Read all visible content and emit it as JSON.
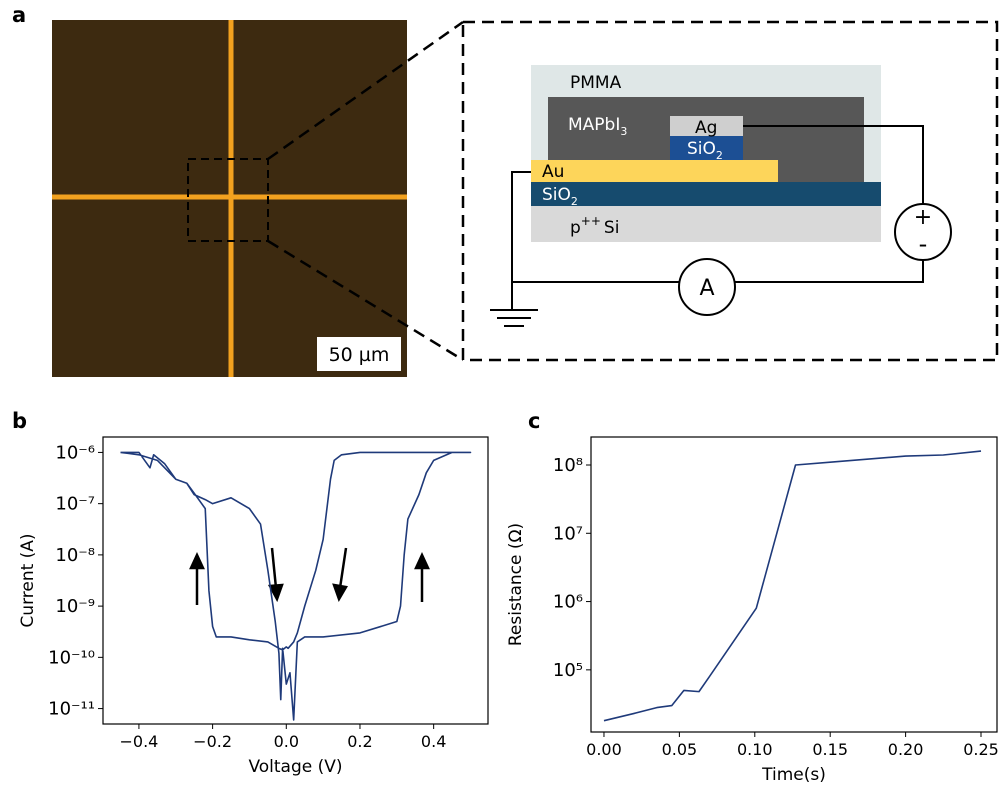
{
  "panel_a": {
    "panel_label": "a",
    "scale_bar": "50 µm",
    "schematic": {
      "pmma": "PMMA",
      "mapbi": {
        "text": "MAPbI",
        "sub": "3"
      },
      "ag": "Ag",
      "sio2_small": {
        "text": "SiO",
        "sub": "2"
      },
      "au": "Au",
      "sio2_layer": {
        "text": "SiO",
        "sub": "2"
      },
      "substrate": {
        "text": "p",
        "sup": "++",
        "rest": "Si"
      },
      "plus": "+",
      "minus": "-",
      "ammeter": "A"
    }
  },
  "chart_data": [
    {
      "type": "line",
      "panel_label": "b",
      "x_label": "Voltage (V)",
      "y_label": "Current (A)",
      "color": "#1f3a7a",
      "log_y": true,
      "xlim": [
        -0.4975,
        0.5475
      ],
      "ylim": [
        5e-12,
        2e-06
      ],
      "xticks": [
        {
          "value": -0.4,
          "label": "−0.4"
        },
        {
          "value": -0.2,
          "label": "−0.2"
        },
        {
          "value": 0,
          "label": "0.0"
        },
        0.2,
        0.4
      ],
      "yticks": [
        {
          "value": 1e-06,
          "label": "10⁻⁶"
        },
        {
          "value": 1e-07,
          "label": "10⁻⁷"
        },
        {
          "value": 1e-08,
          "label": "10⁻⁸"
        },
        {
          "value": 1e-09,
          "label": "10⁻⁹"
        },
        {
          "value": 1e-10,
          "label": "10⁻¹⁰"
        },
        {
          "value": 1e-11,
          "label": "10⁻¹¹"
        }
      ],
      "x": [
        -0.45,
        -0.4,
        -0.37,
        -0.36,
        -0.33,
        -0.3,
        -0.27,
        -0.25,
        -0.22,
        -0.2,
        -0.15,
        -0.1,
        -0.07,
        -0.05,
        -0.03,
        -0.02,
        -0.015,
        -0.01,
        0.0,
        0.01,
        0.02,
        0.03,
        0.05,
        0.1,
        0.2,
        0.3,
        0.31,
        0.32,
        0.33,
        0.36,
        0.38,
        0.4,
        0.45,
        0.5,
        0.5,
        0.4,
        0.2,
        0.15,
        0.13,
        0.12,
        0.1,
        0.08,
        0.05,
        0.03,
        0.02,
        0.005,
        0.0,
        -0.01,
        -0.02,
        -0.05,
        -0.1,
        -0.15,
        -0.19,
        -0.2,
        -0.21,
        -0.22,
        -0.25,
        -0.27,
        -0.3,
        -0.35,
        -0.4,
        -0.45
      ],
      "values": [
        1e-06,
        1e-06,
        5e-07,
        9e-07,
        6e-07,
        3e-07,
        2.5e-07,
        1.5e-07,
        1.2e-07,
        1e-07,
        1.3e-07,
        8e-08,
        4e-08,
        5e-09,
        5e-10,
        1.2e-10,
        1.5e-11,
        1.5e-10,
        3e-11,
        5e-11,
        6e-12,
        2e-10,
        2.5e-10,
        2.5e-10,
        3e-10,
        5e-10,
        1e-09,
        1e-08,
        5e-08,
        1.5e-07,
        4e-07,
        7e-07,
        1e-06,
        1e-06,
        1e-06,
        1e-06,
        1e-06,
        9e-07,
        7e-07,
        3e-07,
        2e-08,
        5e-09,
        1e-09,
        3e-10,
        2e-10,
        1.5e-10,
        1.6e-10,
        1.4e-10,
        1.5e-10,
        2e-10,
        2.2e-10,
        2.5e-10,
        2.5e-10,
        4e-10,
        2e-09,
        8e-08,
        1.6e-07,
        2.5e-07,
        3e-07,
        7e-07,
        9e-07,
        1e-06
      ]
    },
    {
      "type": "line",
      "panel_label": "c",
      "x_label": "Time(s)",
      "y_label": "Resistance (Ω)",
      "color": "#1f3a7a",
      "log_y": true,
      "xlim": [
        -0.0086,
        0.2606
      ],
      "ylim": [
        12300,
        257000000
      ],
      "xticks": [
        {
          "value": 0,
          "label": "0.00"
        },
        {
          "value": 0.05,
          "label": "0.05"
        },
        {
          "value": 0.1,
          "label": "0.10"
        },
        {
          "value": 0.15,
          "label": "0.15"
        },
        {
          "value": 0.2,
          "label": "0.20"
        },
        {
          "value": 0.25,
          "label": "0.25"
        }
      ],
      "yticks": [
        {
          "value": 100000,
          "label": "10⁵"
        },
        {
          "value": 1000000,
          "label": "10⁶"
        },
        {
          "value": 10000000,
          "label": "10⁷"
        },
        {
          "value": 100000000,
          "label": "10⁸"
        }
      ],
      "x": [
        0,
        0.02,
        0.035,
        0.045,
        0.053,
        0.063,
        0.07,
        0.101,
        0.127,
        0.15,
        0.2,
        0.225,
        0.25
      ],
      "values": [
        18000,
        23000,
        28000,
        30000,
        50000,
        48000,
        80000,
        800000,
        100000000,
        110000000,
        135000000,
        140000000,
        160000000
      ]
    }
  ]
}
